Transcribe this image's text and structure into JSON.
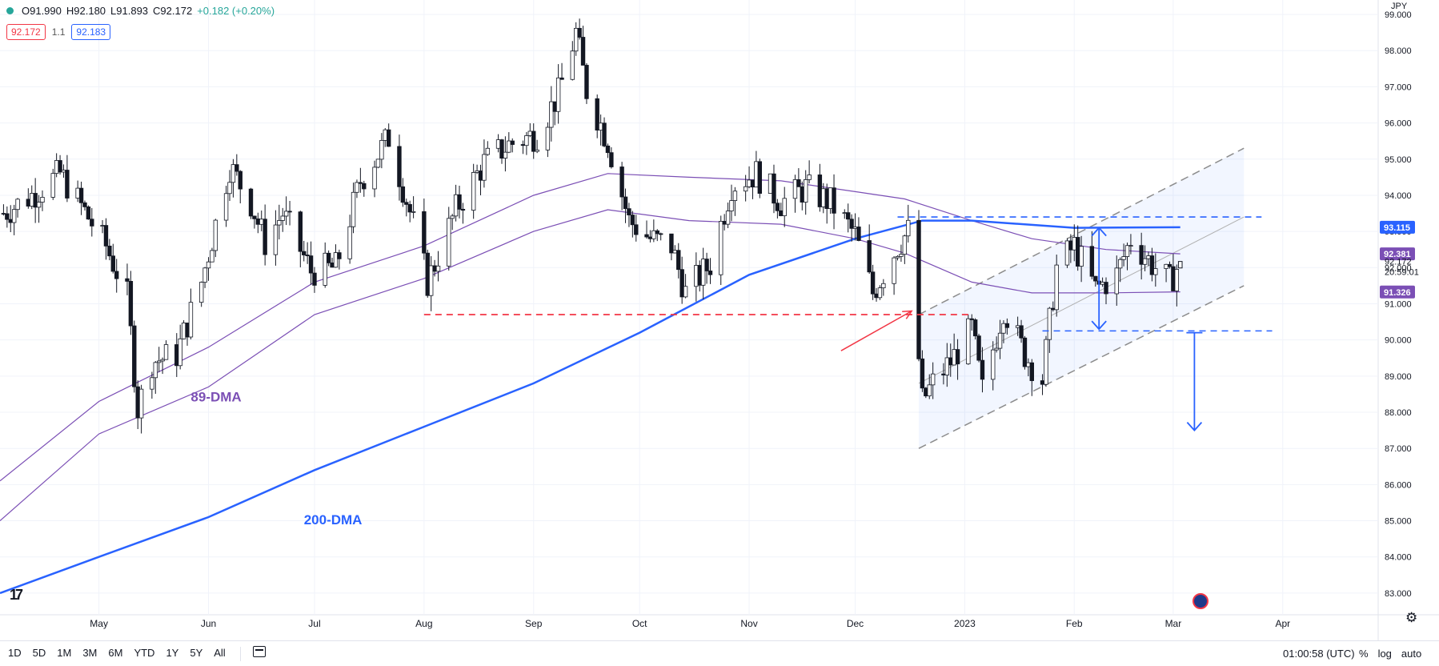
{
  "header": {
    "open": "O91.990",
    "high": "H92.180",
    "low": "L91.893",
    "close": "C92.172",
    "change": "+0.182 (+0.20%)",
    "bid": "92.172",
    "spread": "1.1",
    "ask": "92.183",
    "currency": "JPY"
  },
  "bottom": {
    "ranges": [
      "1D",
      "5D",
      "1M",
      "3M",
      "6M",
      "YTD",
      "1Y",
      "5Y",
      "All"
    ],
    "clock": "01:00:58 (UTC)",
    "percent": "%",
    "log": "log",
    "auto": "auto"
  },
  "colors": {
    "up": "#26a69a",
    "down": "#f23645",
    "candle": "#131722",
    "ma200": "#2962ff",
    "ma89": "#7b4fb5",
    "support_line": "#f23645",
    "channel": "#8c8c8c"
  },
  "chart_data": {
    "type": "candlestick",
    "symbol_currency": "JPY",
    "ylim": [
      82.4,
      99.4
    ],
    "y_ticks": [
      "83.000",
      "84.000",
      "85.000",
      "86.000",
      "87.000",
      "88.000",
      "89.000",
      "90.000",
      "91.000",
      "92.000",
      "93.000",
      "94.000",
      "95.000",
      "96.000",
      "97.000",
      "98.000",
      "99.000"
    ],
    "x_labels": [
      {
        "label": "May",
        "date": "2022-05-01"
      },
      {
        "label": "Jun",
        "date": "2022-06-01"
      },
      {
        "label": "Jul",
        "date": "2022-07-01"
      },
      {
        "label": "Aug",
        "date": "2022-08-01"
      },
      {
        "label": "Sep",
        "date": "2022-09-01"
      },
      {
        "label": "Oct",
        "date": "2022-10-01"
      },
      {
        "label": "Nov",
        "date": "2022-11-01"
      },
      {
        "label": "Dec",
        "date": "2022-12-01"
      },
      {
        "label": "2023",
        "date": "2023-01-01"
      },
      {
        "label": "Feb",
        "date": "2023-02-01"
      },
      {
        "label": "Mar",
        "date": "2023-03-01"
      },
      {
        "label": "Apr",
        "date": "2023-04-01"
      }
    ],
    "x_range": [
      "2022-04-03",
      "2023-04-28"
    ],
    "close_path": [
      [
        "2022-04-04",
        93.5
      ],
      [
        "2022-04-12",
        94.0
      ],
      [
        "2022-04-20",
        94.6
      ],
      [
        "2022-04-26",
        93.7
      ],
      [
        "2022-05-03",
        92.6
      ],
      [
        "2022-05-09",
        91.2
      ],
      [
        "2022-05-12",
        88.1
      ],
      [
        "2022-05-16",
        89.4
      ],
      [
        "2022-05-23",
        89.6
      ],
      [
        "2022-05-30",
        91.6
      ],
      [
        "2022-06-07",
        94.8
      ],
      [
        "2022-06-13",
        93.8
      ],
      [
        "2022-06-17",
        92.7
      ],
      [
        "2022-06-22",
        93.5
      ],
      [
        "2022-06-30",
        91.9
      ],
      [
        "2022-07-07",
        92.0
      ],
      [
        "2022-07-14",
        94.4
      ],
      [
        "2022-07-22",
        95.6
      ],
      [
        "2022-07-29",
        93.2
      ],
      [
        "2022-08-02",
        91.6
      ],
      [
        "2022-08-10",
        93.6
      ],
      [
        "2022-08-18",
        94.9
      ],
      [
        "2022-08-25",
        95.4
      ],
      [
        "2022-09-02",
        95.7
      ],
      [
        "2022-09-08",
        96.8
      ],
      [
        "2022-09-13",
        98.5
      ],
      [
        "2022-09-16",
        96.9
      ],
      [
        "2022-09-22",
        95.5
      ],
      [
        "2022-09-28",
        93.3
      ],
      [
        "2022-10-04",
        92.8
      ],
      [
        "2022-10-10",
        92.6
      ],
      [
        "2022-10-14",
        91.3
      ],
      [
        "2022-10-21",
        92.1
      ],
      [
        "2022-10-27",
        94.3
      ],
      [
        "2022-11-03",
        94.6
      ],
      [
        "2022-11-10",
        93.8
      ],
      [
        "2022-11-17",
        94.2
      ],
      [
        "2022-11-24",
        93.8
      ],
      [
        "2022-12-01",
        92.9
      ],
      [
        "2022-12-06",
        91.3
      ],
      [
        "2022-12-13",
        92.6
      ],
      [
        "2022-12-16",
        93.0
      ],
      [
        "2022-12-20",
        88.3
      ],
      [
        "2022-12-23",
        88.8
      ],
      [
        "2022-12-28",
        89.4
      ],
      [
        "2023-01-03",
        90.3
      ],
      [
        "2023-01-06",
        88.6
      ],
      [
        "2023-01-12",
        90.9
      ],
      [
        "2023-01-18",
        89.6
      ],
      [
        "2023-01-23",
        88.9
      ],
      [
        "2023-01-27",
        92.0
      ],
      [
        "2023-02-01",
        92.6
      ],
      [
        "2023-02-07",
        91.4
      ],
      [
        "2023-02-13",
        91.8
      ],
      [
        "2023-02-17",
        92.8
      ],
      [
        "2023-02-23",
        92.1
      ],
      [
        "2023-02-28",
        91.6
      ],
      [
        "2023-03-03",
        92.17
      ]
    ],
    "ma89": [
      [
        "2022-04-03",
        86.1
      ],
      [
        "2022-05-01",
        88.3
      ],
      [
        "2022-06-01",
        89.8
      ],
      [
        "2022-07-01",
        91.6
      ],
      [
        "2022-08-01",
        92.6
      ],
      [
        "2022-09-01",
        94.0
      ],
      [
        "2022-09-22",
        94.6
      ],
      [
        "2022-10-15",
        94.5
      ],
      [
        "2022-11-10",
        94.4
      ],
      [
        "2022-12-01",
        94.1
      ],
      [
        "2022-12-15",
        93.9
      ],
      [
        "2023-01-03",
        93.3
      ],
      [
        "2023-01-20",
        92.8
      ],
      [
        "2023-02-10",
        92.5
      ],
      [
        "2023-03-03",
        92.38
      ]
    ],
    "ma89_lower": [
      [
        "2022-04-03",
        85.0
      ],
      [
        "2022-05-01",
        87.4
      ],
      [
        "2022-06-01",
        88.7
      ],
      [
        "2022-07-01",
        90.7
      ],
      [
        "2022-08-01",
        91.7
      ],
      [
        "2022-09-01",
        93.0
      ],
      [
        "2022-09-22",
        93.6
      ],
      [
        "2022-10-15",
        93.3
      ],
      [
        "2022-11-10",
        93.2
      ],
      [
        "2022-12-01",
        92.8
      ],
      [
        "2022-12-15",
        92.4
      ],
      [
        "2023-01-03",
        91.6
      ],
      [
        "2023-01-20",
        91.3
      ],
      [
        "2023-02-10",
        91.3
      ],
      [
        "2023-03-03",
        91.33
      ]
    ],
    "ma200": [
      [
        "2022-04-03",
        83.0
      ],
      [
        "2022-05-01",
        84.0
      ],
      [
        "2022-06-01",
        85.1
      ],
      [
        "2022-07-01",
        86.4
      ],
      [
        "2022-08-01",
        87.6
      ],
      [
        "2022-09-01",
        88.8
      ],
      [
        "2022-10-01",
        90.2
      ],
      [
        "2022-11-01",
        91.8
      ],
      [
        "2022-12-01",
        92.8
      ],
      [
        "2022-12-20",
        93.3
      ],
      [
        "2023-01-03",
        93.3
      ],
      [
        "2023-02-01",
        93.1
      ],
      [
        "2023-03-03",
        93.115
      ]
    ],
    "price_badges": [
      {
        "value": "93.115",
        "color": "#2962ff"
      },
      {
        "value": "92.381",
        "color": "#7b4fb5"
      },
      {
        "value": "92.172",
        "color": "none"
      },
      {
        "value": "91.326",
        "color": "#7b4fb5"
      }
    ],
    "countdown": "20:59:01",
    "annotations": [
      {
        "text": "89-DMA",
        "color": "#7b4fb5",
        "at": [
          "2022-05-27",
          88.3
        ]
      },
      {
        "text": "200-DMA",
        "color": "#2962ff",
        "at": [
          "2022-06-28",
          84.9
        ]
      }
    ],
    "levels": {
      "red_dashed": {
        "value": 90.7,
        "from": "2022-08-01",
        "to": "2023-01-03"
      },
      "blue_dashed_upper": {
        "value": 93.4,
        "from": "2022-12-13",
        "to": "2023-03-26"
      },
      "blue_dashed_lower": {
        "value": 90.25,
        "from": "2023-01-23",
        "to": "2023-03-29"
      }
    },
    "channel": {
      "start": "2022-12-19",
      "end": "2023-03-21",
      "lower_start": 87.0,
      "lower_end": 91.5,
      "upper_start": 90.7,
      "upper_end": 95.3,
      "mid_start": 88.8,
      "mid_end": 93.4
    },
    "arrows": [
      {
        "kind": "double",
        "date": "2023-02-08",
        "from": 93.1,
        "to": 90.3
      },
      {
        "kind": "down",
        "date": "2023-03-07",
        "from": 90.2,
        "to": 87.5
      }
    ],
    "red_arrow": {
      "from": [
        "2022-11-27",
        89.7
      ],
      "to": [
        "2022-12-17",
        90.8
      ]
    },
    "grid": true
  }
}
